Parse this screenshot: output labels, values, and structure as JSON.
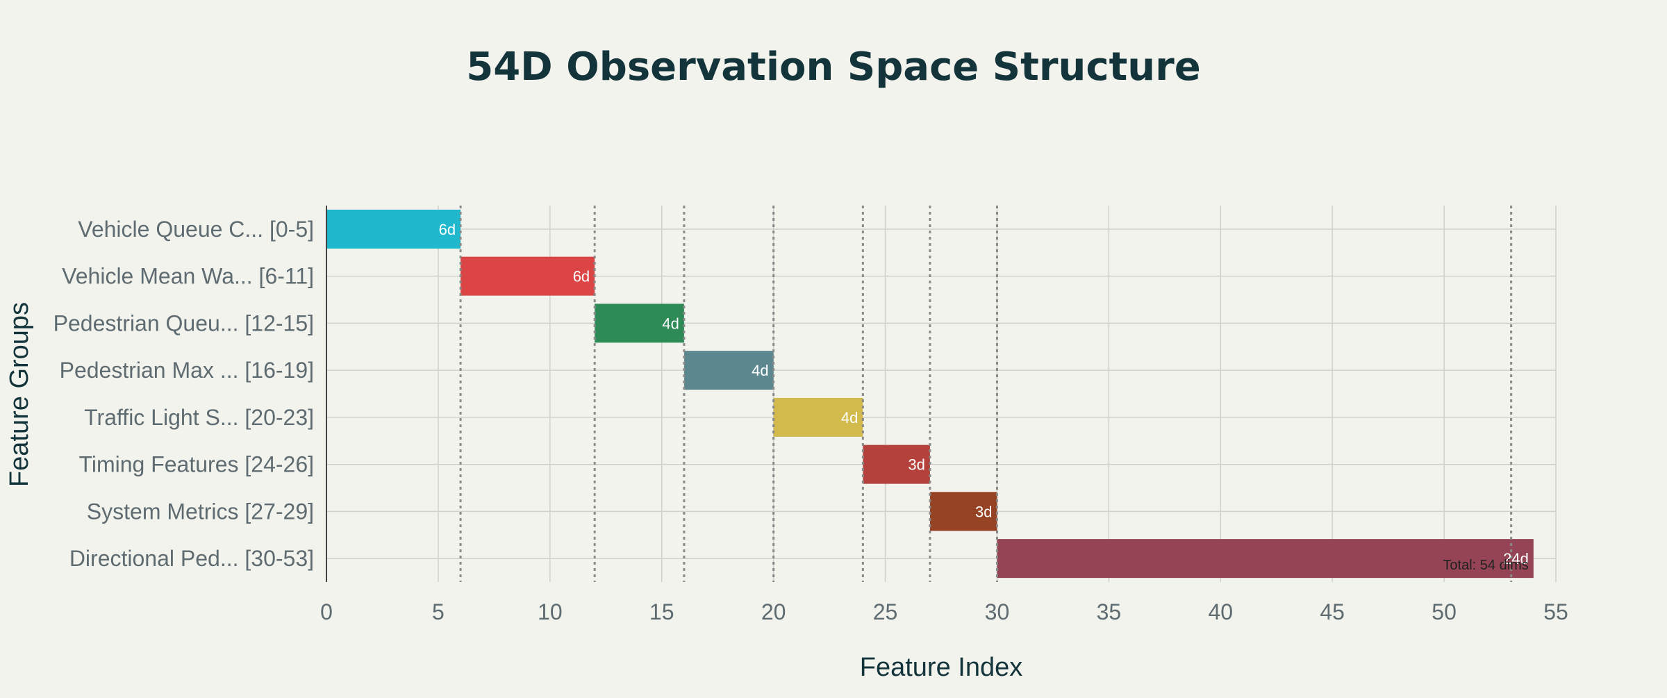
{
  "chart_data": {
    "type": "bar",
    "orientation": "horizontal",
    "title": "54D Observation Space Structure",
    "xlabel": "Feature Index",
    "ylabel": "Feature Groups",
    "xlim": [
      0,
      55
    ],
    "xticks": [
      0,
      5,
      10,
      15,
      20,
      25,
      30,
      35,
      40,
      45,
      50,
      55
    ],
    "grid": true,
    "categories": [
      "Vehicle Queue C... [0-5]",
      "Vehicle Mean Wa... [6-11]",
      "Pedestrian Queu... [12-15]",
      "Pedestrian Max ... [16-19]",
      "Traffic Light S... [20-23]",
      "Timing Features [24-26]",
      "System Metrics [27-29]",
      "Directional Ped... [30-53]"
    ],
    "bars": [
      {
        "start": 0,
        "end": 6,
        "label": "6d",
        "color": "#1fb8cd"
      },
      {
        "start": 6,
        "end": 12,
        "label": "6d",
        "color": "#db4545"
      },
      {
        "start": 12,
        "end": 16,
        "label": "4d",
        "color": "#2e8b57"
      },
      {
        "start": 16,
        "end": 20,
        "label": "4d",
        "color": "#5d878f"
      },
      {
        "start": 20,
        "end": 24,
        "label": "4d",
        "color": "#d2ba4c"
      },
      {
        "start": 24,
        "end": 27,
        "label": "3d",
        "color": "#b4413c"
      },
      {
        "start": 27,
        "end": 30,
        "label": "3d",
        "color": "#964325"
      },
      {
        "start": 30,
        "end": 54,
        "label": "24d",
        "color": "#944454"
      }
    ],
    "boundaries": [
      6,
      12,
      16,
      20,
      24,
      27,
      30,
      53
    ],
    "annotation": {
      "text": "Total: 54 dims",
      "x": 54,
      "category": "Directional Ped... [30-53]"
    },
    "legend": "none"
  },
  "colors": {
    "background": "#f3f3ee",
    "title": "#13343b",
    "tick_text": "#5e6b70",
    "grid": "#cfd0cb",
    "boundary": "#8a8a8a"
  }
}
